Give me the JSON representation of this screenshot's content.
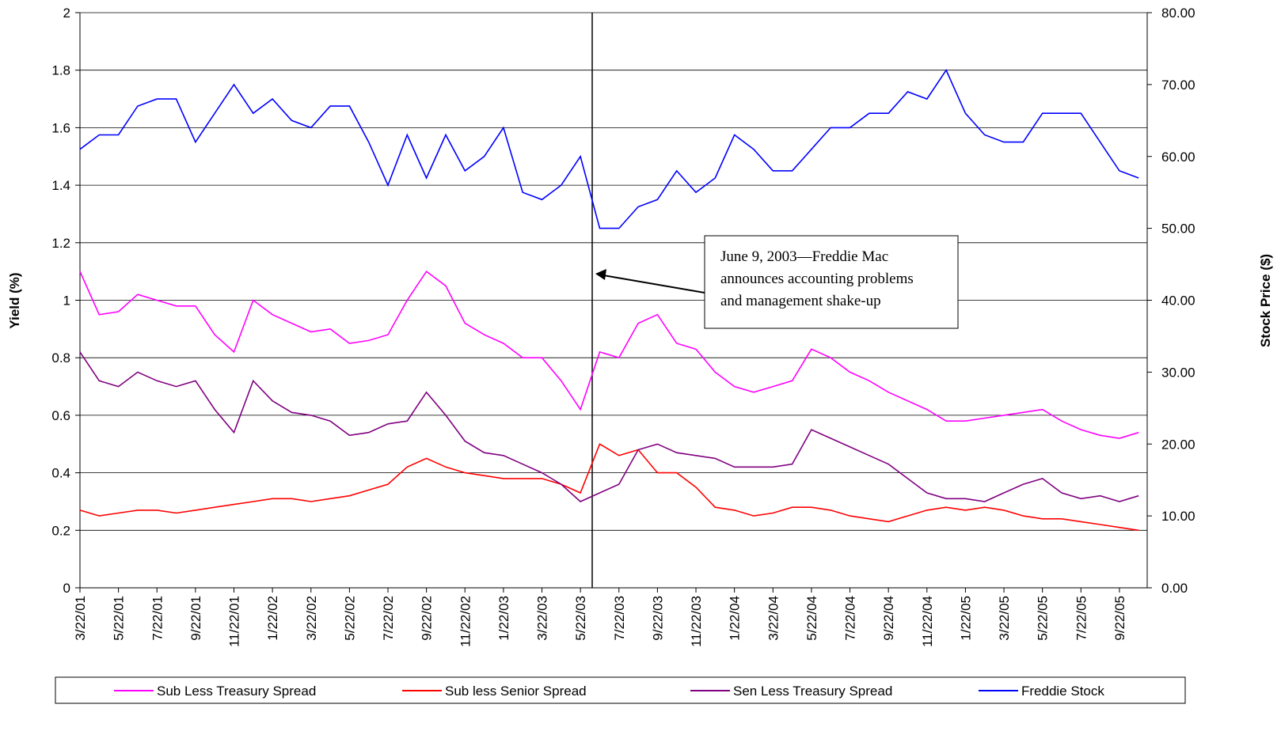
{
  "chart_data": {
    "type": "line",
    "y_label": "Yield (%)",
    "y2_label": "Stock Price ($)",
    "annotation": [
      "June 9, 2003—Freddie Mac",
      "announces accounting problems",
      "and management shake-up"
    ],
    "xlim": [
      "3/22/01",
      "11/5/05"
    ],
    "xticks": [
      "3/22/01",
      "5/22/01",
      "7/22/01",
      "9/22/01",
      "11/22/01",
      "1/22/02",
      "3/22/02",
      "5/22/02",
      "7/22/02",
      "9/22/02",
      "11/22/02",
      "1/22/03",
      "3/22/03",
      "5/22/03",
      "7/22/03",
      "9/22/03",
      "11/22/03",
      "1/22/04",
      "3/22/04",
      "5/22/04",
      "7/22/04",
      "9/22/04",
      "11/22/04",
      "1/22/05",
      "3/22/05",
      "5/22/05",
      "7/22/05",
      "9/22/05"
    ],
    "ylim": [
      0,
      2
    ],
    "yticks": [
      0,
      0.2,
      0.4,
      0.6,
      0.8,
      1,
      1.2,
      1.4,
      1.6,
      1.8,
      2
    ],
    "y2lim": [
      0,
      80
    ],
    "y2ticks": [
      {
        "value": 0,
        "label": "0.00"
      },
      {
        "value": 10,
        "label": "10.00"
      },
      {
        "value": 20,
        "label": "20.00"
      },
      {
        "value": 30,
        "label": "30.00"
      },
      {
        "value": 40,
        "label": "40.00"
      },
      {
        "value": 50,
        "label": "50.00"
      },
      {
        "value": 60,
        "label": "60.00"
      },
      {
        "value": 70,
        "label": "70.00"
      },
      {
        "value": 80,
        "label": "80.00"
      }
    ],
    "grid": true,
    "x": [
      "3/22/01",
      "4/22/01",
      "5/22/01",
      "6/22/01",
      "7/22/01",
      "8/22/01",
      "9/22/01",
      "10/22/01",
      "11/22/01",
      "12/22/01",
      "1/22/02",
      "2/22/02",
      "3/22/02",
      "4/22/02",
      "5/22/02",
      "6/22/02",
      "7/22/02",
      "8/22/02",
      "9/22/02",
      "10/22/02",
      "11/22/02",
      "12/22/02",
      "1/22/03",
      "2/22/03",
      "3/22/03",
      "4/22/03",
      "5/22/03",
      "6/22/03",
      "7/22/03",
      "8/22/03",
      "9/22/03",
      "10/22/03",
      "11/22/03",
      "12/22/03",
      "1/22/04",
      "2/22/04",
      "3/22/04",
      "4/22/04",
      "5/22/04",
      "6/22/04",
      "7/22/04",
      "8/22/04",
      "9/22/04",
      "10/22/04",
      "11/22/04",
      "12/22/04",
      "1/22/05",
      "2/22/05",
      "3/22/05",
      "4/22/05",
      "5/22/05",
      "6/22/05",
      "7/22/05",
      "8/22/05",
      "9/22/05",
      "10/22/05"
    ],
    "series": [
      {
        "name": "Sub Less Treasury Spread",
        "color": "#ff00ff",
        "values": [
          1.1,
          0.95,
          0.96,
          1.02,
          1.0,
          0.98,
          0.98,
          0.88,
          0.82,
          1.0,
          0.95,
          0.92,
          0.89,
          0.9,
          0.85,
          0.86,
          0.88,
          1.0,
          1.1,
          1.05,
          0.92,
          0.88,
          0.85,
          0.8,
          0.8,
          0.72,
          0.62,
          0.82,
          0.8,
          0.92,
          0.95,
          0.85,
          0.83,
          0.75,
          0.7,
          0.68,
          0.7,
          0.72,
          0.83,
          0.8,
          0.75,
          0.72,
          0.68,
          0.65,
          0.62,
          0.58,
          0.58,
          0.59,
          0.6,
          0.61,
          0.62,
          0.58,
          0.55,
          0.53,
          0.52,
          0.54
        ]
      },
      {
        "name": "Sub less Senior Spread",
        "color": "#ff0000",
        "values": [
          0.27,
          0.25,
          0.26,
          0.27,
          0.27,
          0.26,
          0.27,
          0.28,
          0.29,
          0.3,
          0.31,
          0.31,
          0.3,
          0.31,
          0.32,
          0.34,
          0.36,
          0.42,
          0.45,
          0.42,
          0.4,
          0.39,
          0.38,
          0.38,
          0.38,
          0.36,
          0.33,
          0.5,
          0.46,
          0.48,
          0.4,
          0.4,
          0.35,
          0.28,
          0.27,
          0.25,
          0.26,
          0.28,
          0.28,
          0.27,
          0.25,
          0.24,
          0.23,
          0.25,
          0.27,
          0.28,
          0.27,
          0.28,
          0.27,
          0.25,
          0.24,
          0.24,
          0.23,
          0.22,
          0.21,
          0.2
        ]
      },
      {
        "name": "Sen Less Treasury Spread",
        "color": "#800080",
        "values": [
          0.82,
          0.72,
          0.7,
          0.75,
          0.72,
          0.7,
          0.72,
          0.62,
          0.54,
          0.72,
          0.65,
          0.61,
          0.6,
          0.58,
          0.53,
          0.54,
          0.57,
          0.58,
          0.68,
          0.6,
          0.51,
          0.47,
          0.46,
          0.43,
          0.4,
          0.36,
          0.3,
          0.33,
          0.36,
          0.48,
          0.5,
          0.47,
          0.46,
          0.45,
          0.42,
          0.42,
          0.42,
          0.43,
          0.55,
          0.52,
          0.49,
          0.46,
          0.43,
          0.38,
          0.33,
          0.31,
          0.31,
          0.3,
          0.33,
          0.36,
          0.38,
          0.33,
          0.31,
          0.32,
          0.3,
          0.32
        ]
      },
      {
        "name": "Freddie Stock",
        "color": "#0000ff",
        "axis": "y2",
        "values": [
          61,
          63,
          63,
          67,
          68,
          68,
          62,
          66,
          70,
          66,
          68,
          65,
          64,
          67,
          67,
          62,
          56,
          63,
          57,
          63,
          58,
          60,
          64,
          55,
          54,
          56,
          60,
          50,
          50,
          53,
          54,
          58,
          55,
          57,
          63,
          61,
          58,
          58,
          61,
          64,
          64,
          66,
          66,
          69,
          68,
          72,
          66,
          63,
          62,
          62,
          66,
          66,
          66,
          62,
          58,
          57
        ]
      }
    ]
  }
}
